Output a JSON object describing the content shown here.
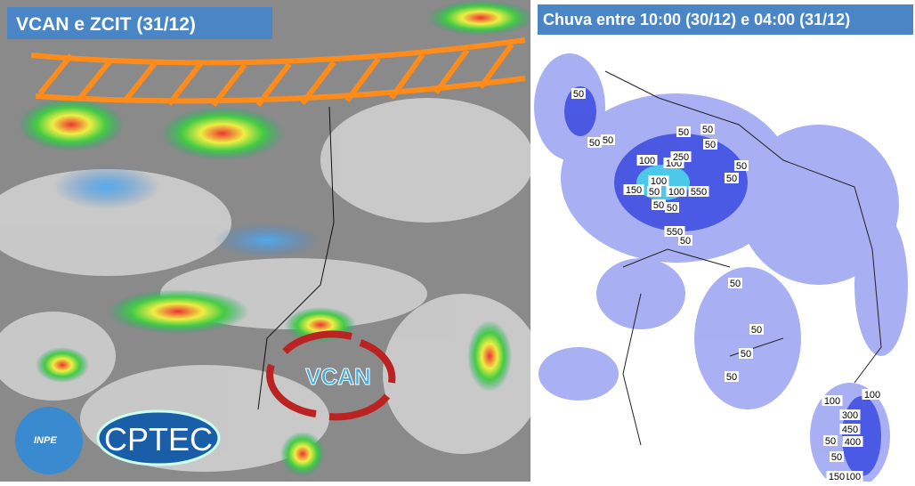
{
  "left_panel": {
    "title": "VCAN e ZCIT (31/12)",
    "vcan_label": "VCAN",
    "logos": [
      "INPE",
      "CPTEC"
    ]
  },
  "right_panel": {
    "title": "Chuva entre 10:00 (30/12) e 04:00 (31/12)",
    "contour_labels": [
      "50",
      "50",
      "50",
      "50",
      "50",
      "100",
      "100",
      "250",
      "50",
      "50",
      "50",
      "100",
      "150",
      "50",
      "100",
      "550",
      "50",
      "50",
      "550",
      "50",
      "50",
      "50",
      "50",
      "50",
      "100",
      "100",
      "300",
      "450",
      "50",
      "400",
      "50",
      "100",
      "150"
    ]
  }
}
